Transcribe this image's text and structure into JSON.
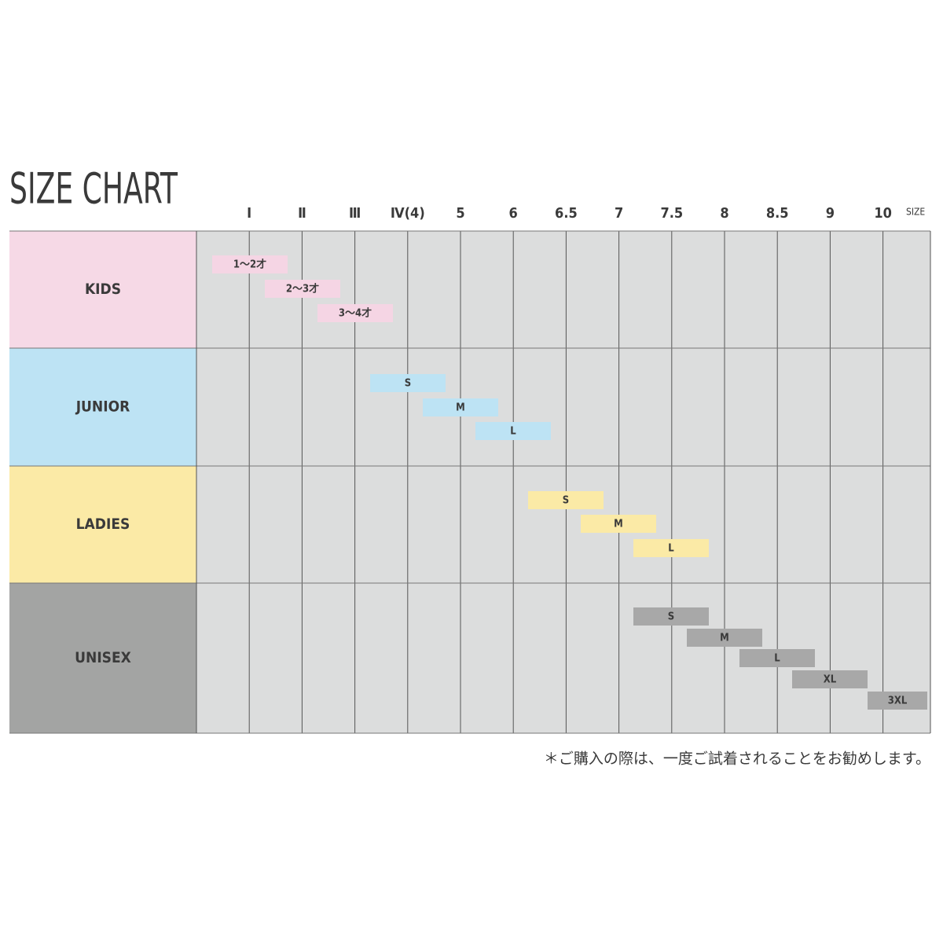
{
  "title": "SIZE CHART",
  "size_label": "SIZE",
  "columns": [
    "Ⅰ",
    "Ⅱ",
    "Ⅲ",
    "Ⅳ(4)",
    "5",
    "6",
    "6.5",
    "7",
    "7.5",
    "8",
    "8.5",
    "9",
    "10"
  ],
  "rows": [
    {
      "name": "KIDS",
      "color": "#f6d9e6",
      "bars": [
        "1～2才",
        "2～3才",
        "3～4才"
      ]
    },
    {
      "name": "JUNIOR",
      "color": "#bde3f4",
      "bars": [
        "S",
        "M",
        "L"
      ]
    },
    {
      "name": "LADIES",
      "color": "#fbeaa6",
      "bars": [
        "S",
        "M",
        "L"
      ]
    },
    {
      "name": "UNISEX",
      "color": "#a3a4a3",
      "bars": [
        "S",
        "M",
        "L",
        "XL",
        "3XL"
      ]
    }
  ],
  "note": "＊ご購入の際は、一度ご試着されることをお勧めします。"
}
